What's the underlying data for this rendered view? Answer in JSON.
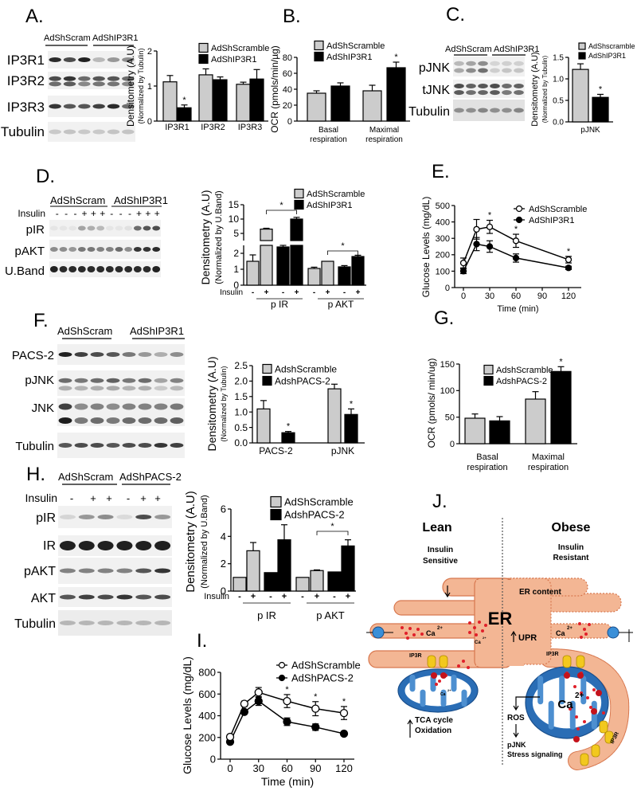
{
  "panels": {
    "A": "A.",
    "B": "B.",
    "C": "C.",
    "D": "D.",
    "E": "E.",
    "F": "F.",
    "G": "G.",
    "H": "H.",
    "I": "I.",
    "J": "J."
  },
  "blots": {
    "A": {
      "groups": [
        "AdShScram",
        "AdShIP3R1"
      ],
      "rows": [
        "IP3R1",
        "IP3R2",
        "IP3R3",
        "Tubulin"
      ]
    },
    "C": {
      "groups": [
        "AdShScram",
        "AdShIP3R1"
      ],
      "rows": [
        "pJNK",
        "tJNK",
        "Tubulin"
      ]
    },
    "D": {
      "groups": [
        "AdShScram",
        "AdShIP3R1"
      ],
      "insulin_label": "Insulin",
      "insulin_signs": [
        "-",
        "-",
        "-",
        "+",
        "+",
        "+",
        "-",
        "-",
        "-",
        "+",
        "+",
        "+"
      ],
      "rows": [
        "pIR",
        "pAKT",
        "U.Band"
      ]
    },
    "F": {
      "groups": [
        "AdShScram",
        "AdShIP3R1"
      ],
      "rows": [
        "PACS-2",
        "pJNK",
        "JNK",
        "Tubulin"
      ]
    },
    "H": {
      "groups": [
        "AdShScram",
        "AdShPACS-2"
      ],
      "insulin_label": "Insulin",
      "insulin_signs": [
        "-",
        "+",
        "+",
        "-",
        "+",
        "+"
      ],
      "rows": [
        "pIR",
        "IR",
        "pAKT",
        "AKT",
        "Tubulin"
      ]
    }
  },
  "chart_data": [
    {
      "panel": "A",
      "type": "bar",
      "ylabel": "Densitometry (A.U)",
      "ylabel_sub": "(Normalized by Tubulin)",
      "categories": [
        [
          "IP3R1"
        ],
        [
          "IP3R2"
        ],
        [
          "IP3R3"
        ]
      ],
      "ylim": [
        0,
        2
      ],
      "yticks": [
        "0",
        "1",
        "2"
      ],
      "series": [
        {
          "name": "AdShScramble",
          "color": "#cccccc",
          "values": [
            1.12,
            1.32,
            1.05
          ],
          "errors": [
            0.18,
            0.17,
            0.06
          ]
        },
        {
          "name": "AdShIP3R1",
          "color": "#000000",
          "values": [
            0.38,
            1.18,
            1.2
          ],
          "errors": [
            0.08,
            0.08,
            0.27
          ]
        }
      ],
      "significant": [
        [
          1,
          0
        ]
      ],
      "sig_marker": "*"
    },
    {
      "panel": "B",
      "type": "bar",
      "ylabel": "OCR (pmols/min/µg)",
      "categories": [
        [
          "Basal",
          "respiration"
        ],
        [
          "Maximal",
          "respiration"
        ]
      ],
      "ylim": [
        0,
        80
      ],
      "yticks": [
        "0",
        "20",
        "40",
        "60",
        "80"
      ],
      "series": [
        {
          "name": "AdShScramble",
          "color": "#cccccc",
          "values": [
            35,
            38
          ],
          "errors": [
            3,
            7
          ]
        },
        {
          "name": "AdShIP3R1",
          "color": "#000000",
          "values": [
            44,
            67
          ],
          "errors": [
            4,
            7
          ]
        }
      ],
      "significant": [
        [
          1,
          1
        ]
      ],
      "sig_marker": "*"
    },
    {
      "panel": "C",
      "type": "bar",
      "ylabel": "Densitometry (A.U)",
      "ylabel_sub": "(Normalized by Tubulin)",
      "categories": [
        [
          "pJNK"
        ]
      ],
      "ylim": [
        0,
        1.5
      ],
      "yticks": [
        "0.0",
        "0.5",
        "1.0",
        "1.5"
      ],
      "series": [
        {
          "name": "AdShscramble",
          "color": "#cccccc",
          "values": [
            1.22
          ],
          "errors": [
            0.13
          ]
        },
        {
          "name": "AdShIP3R1",
          "color": "#000000",
          "values": [
            0.57
          ],
          "errors": [
            0.07
          ]
        }
      ],
      "significant": [
        [
          1,
          0
        ]
      ],
      "sig_marker": "*"
    },
    {
      "panel": "D",
      "type": "bar",
      "ylabel": "Densitometry (A.U)",
      "ylabel_sub": "(Normalized by U.Band)",
      "groups": [
        "p IR",
        "p AKT"
      ],
      "insulin_label": "Insulin",
      "insulin_signs": [
        "-",
        "+",
        "-",
        "+",
        "-",
        "+",
        "-",
        "+"
      ],
      "axis_break": true,
      "ylim": [
        0,
        2.5
      ],
      "yticks": [
        "0",
        "1",
        "2"
      ],
      "ylim_upper": [
        2.5,
        15
      ],
      "yticks_upper": [
        "5",
        "10",
        "15"
      ],
      "series": [
        {
          "name": "AdShScramble",
          "color": "#cccccc",
          "values": [
            1.5,
            6.5,
            1.05,
            1.5
          ],
          "errors": [
            0.4,
            0.3,
            0.08,
            0.02
          ]
        },
        {
          "name": "AdShIP3R1",
          "color": "#000000",
          "values": [
            2.4,
            10,
            1.15,
            1.8
          ],
          "errors": [
            0.1,
            0.6,
            0.08,
            0.08
          ]
        }
      ],
      "brackets": [
        {
          "group": 0,
          "marker": "*"
        },
        {
          "group": 1,
          "marker": "*"
        }
      ]
    },
    {
      "panel": "E",
      "type": "line",
      "xlabel": "Time (min)",
      "ylabel": "Glucose Levels (mg/dL)",
      "xlim": [
        0,
        120
      ],
      "xticks": [
        "0",
        "30",
        "60",
        "90",
        "120"
      ],
      "ylim": [
        0,
        500
      ],
      "yticks": [
        "0",
        "100",
        "200",
        "300",
        "400",
        "500"
      ],
      "series": [
        {
          "name": "AdShScramble",
          "marker": "open-circle",
          "x": [
            0,
            15,
            30,
            60,
            120
          ],
          "values": [
            150,
            355,
            370,
            285,
            170
          ],
          "errors": [
            30,
            60,
            40,
            40,
            20
          ],
          "significant": [
            2,
            3,
            4
          ]
        },
        {
          "name": "AdShIP3R1",
          "marker": "filled-circle",
          "x": [
            0,
            15,
            30,
            60,
            120
          ],
          "values": [
            100,
            265,
            250,
            180,
            120
          ],
          "errors": [
            15,
            40,
            35,
            25,
            10
          ],
          "significant": []
        }
      ],
      "sig_marker": "*"
    },
    {
      "panel": "F",
      "type": "bar",
      "ylabel": "Densitometry (A.U)",
      "ylabel_sub": "(Normalized by Tubulin)",
      "categories": [
        [
          "PACS-2"
        ],
        [
          "pJNK"
        ]
      ],
      "ylim": [
        0,
        2.5
      ],
      "yticks": [
        "0.0",
        "0.5",
        "1.0",
        "1.5",
        "2.0",
        "2.5"
      ],
      "series": [
        {
          "name": "AdshScramble",
          "color": "#cccccc",
          "values": [
            1.1,
            1.75
          ],
          "errors": [
            0.27,
            0.15
          ]
        },
        {
          "name": "AdshPACS-2",
          "color": "#000000",
          "values": [
            0.33,
            0.92
          ],
          "errors": [
            0.04,
            0.18
          ]
        }
      ],
      "significant": [
        [
          1,
          0
        ],
        [
          1,
          1
        ]
      ],
      "sig_marker": "*"
    },
    {
      "panel": "G",
      "type": "bar",
      "ylabel": "OCR (pmols/ min/ug)",
      "categories": [
        [
          "Basal",
          "respiration"
        ],
        [
          "Maximal",
          "respiration"
        ]
      ],
      "ylim": [
        0,
        150
      ],
      "yticks": [
        "0",
        "50",
        "100",
        "150"
      ],
      "series": [
        {
          "name": "AdshScramble",
          "color": "#cccccc",
          "values": [
            48,
            84
          ],
          "errors": [
            8,
            14
          ]
        },
        {
          "name": "AdshPACS-2",
          "color": "#000000",
          "values": [
            43,
            136
          ],
          "errors": [
            8,
            9
          ]
        }
      ],
      "significant": [
        [
          1,
          1
        ]
      ],
      "sig_marker": "*"
    },
    {
      "panel": "H",
      "type": "bar",
      "ylabel": "Densitometry (A.U)",
      "ylabel_sub": "(Normalized by U.Band)",
      "groups": [
        "p IR",
        "p AKT"
      ],
      "insulin_label": "Insulin",
      "insulin_signs": [
        "-",
        "+",
        "-",
        "+",
        "-",
        "+",
        "-",
        "+"
      ],
      "ylim": [
        0,
        6
      ],
      "yticks": [
        "0",
        "2",
        "4",
        "6"
      ],
      "series": [
        {
          "name": "AdShScramble",
          "color": "#cccccc",
          "values": [
            1,
            2.95,
            1,
            1.5
          ],
          "errors": [
            0,
            0.6,
            0,
            0.05
          ]
        },
        {
          "name": "AdshPACS-2",
          "color": "#000000",
          "values": [
            1.35,
            3.75,
            1.4,
            3.3
          ],
          "errors": [
            0,
            1.1,
            0,
            0.45
          ]
        }
      ],
      "brackets": [
        {
          "group": 1,
          "marker": "*"
        }
      ]
    },
    {
      "panel": "I",
      "type": "line",
      "xlabel": "Time (min)",
      "ylabel": "Glucose Levels (mg/dL)",
      "xlim": [
        0,
        120
      ],
      "xticks": [
        "0",
        "30",
        "60",
        "90",
        "120"
      ],
      "ylim": [
        0,
        800
      ],
      "yticks": [
        "0",
        "200",
        "400",
        "600",
        "800"
      ],
      "series": [
        {
          "name": "AdShScramble",
          "marker": "open-circle",
          "x": [
            0,
            15,
            30,
            60,
            90,
            120
          ],
          "values": [
            205,
            510,
            615,
            535,
            465,
            425
          ],
          "errors": [
            20,
            25,
            45,
            60,
            65,
            60
          ],
          "significant": [
            3,
            4,
            5
          ]
        },
        {
          "name": "AdShPACS-2",
          "marker": "filled-circle",
          "x": [
            0,
            15,
            30,
            60,
            90,
            120
          ],
          "values": [
            160,
            435,
            535,
            345,
            295,
            235
          ],
          "errors": [
            10,
            15,
            40,
            35,
            30,
            20
          ],
          "significant": []
        }
      ],
      "sig_marker": "*"
    }
  ],
  "diagram": {
    "lean": {
      "title": "Lean",
      "subtitle": [
        "Insulin",
        "Sensitive"
      ],
      "outcome": [
        "TCA cycle",
        "Oxidation"
      ]
    },
    "obese": {
      "title": "Obese",
      "subtitle": [
        "Insulin",
        "Resistant"
      ],
      "er_content": "ER content",
      "upr": "UPR",
      "ros": "ROS",
      "stress": [
        "pJNK",
        "Stress signaling"
      ]
    },
    "er_label": "ER",
    "ip3r_label": "IP3R",
    "ca_label": "Ca",
    "ca_charge": "2+",
    "colors": {
      "er": "#f3b694",
      "er_stroke": "#d8784f",
      "mito": "#2a6db5",
      "calcium": "#e0202a",
      "channel": "#f2c81e"
    }
  }
}
